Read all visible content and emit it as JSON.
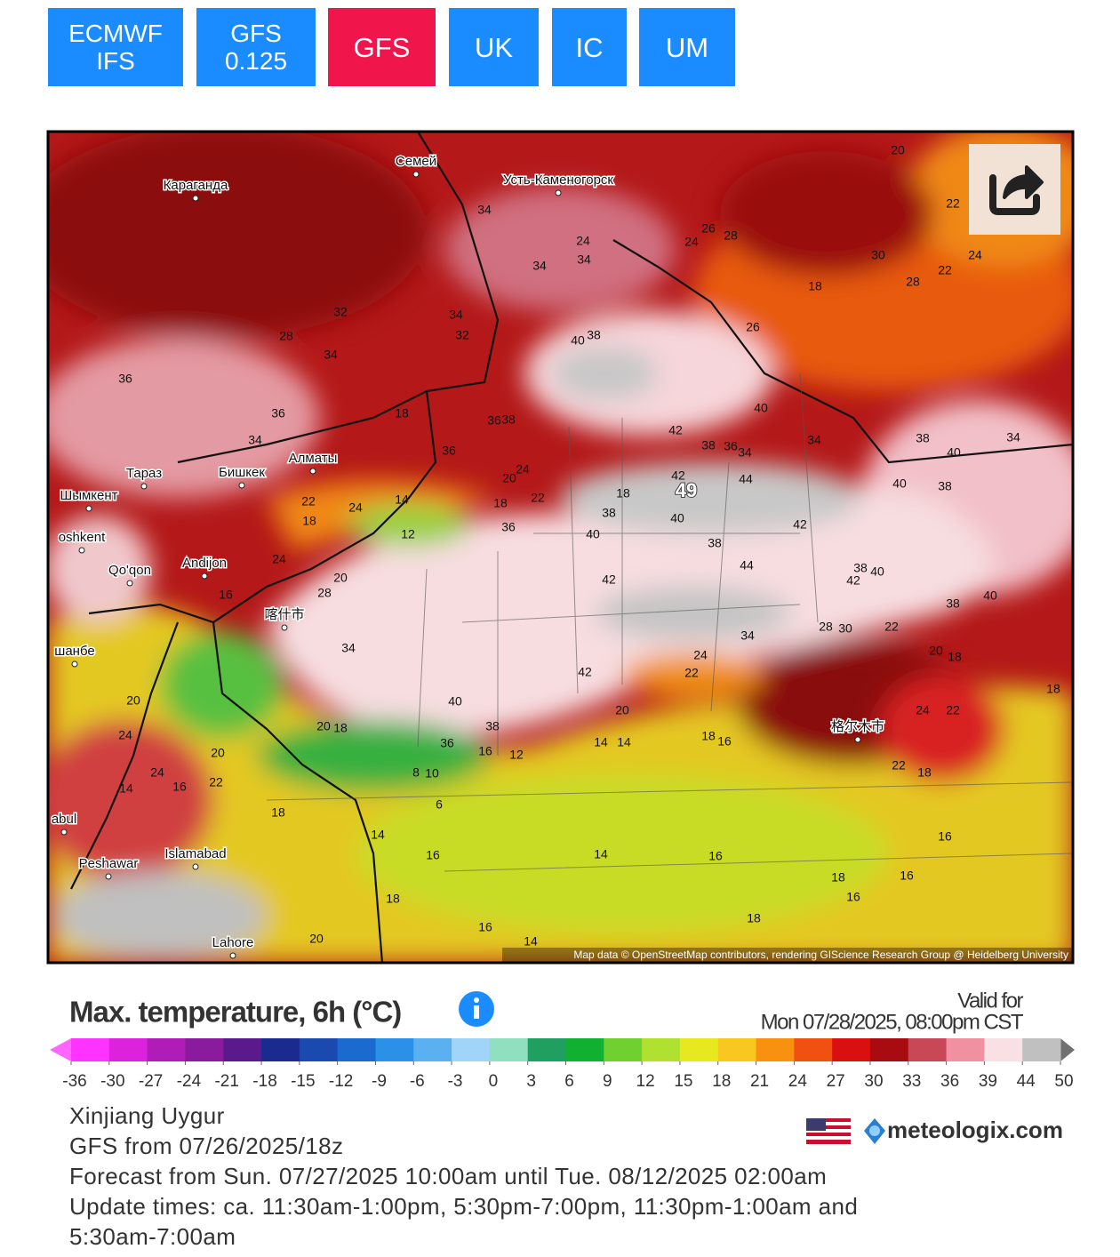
{
  "tabs": [
    "ECMWF IFS",
    "GFS 0.125",
    "GFS",
    "UK",
    "IC",
    "UM"
  ],
  "active_tab": "GFS",
  "map": {
    "cities": [
      "Семей",
      "Караганда",
      "Усть-Каменогорск",
      "Тараз",
      "Бишкек",
      "Алматы",
      "Шымкент",
      "oshkent",
      "Qo'qon",
      "Andijon",
      "喀什市",
      "шанбе",
      "格尔木市",
      "abul",
      "Peshawar",
      "Islamabad",
      "Lahore"
    ],
    "temperatures": [
      34,
      34,
      34,
      24,
      26,
      28,
      24,
      20,
      22,
      24,
      30,
      28,
      22,
      18,
      26,
      28,
      32,
      34,
      38,
      40,
      34,
      32,
      36,
      36,
      34,
      18,
      36,
      38,
      36,
      24,
      20,
      22,
      18,
      42,
      38,
      36,
      34,
      44,
      42,
      40,
      38,
      40,
      36,
      18,
      12,
      14,
      22,
      24,
      18,
      20,
      28,
      24,
      16,
      49,
      40,
      34,
      42,
      44,
      38,
      42,
      38,
      40,
      42,
      40,
      38,
      40,
      38,
      34,
      40,
      38,
      42,
      40,
      38,
      36,
      34,
      20,
      18,
      16,
      12,
      14,
      14,
      18,
      16,
      20,
      24,
      22,
      34,
      28,
      30,
      22,
      20,
      18,
      18,
      24,
      22,
      22,
      18,
      16,
      18,
      16,
      16,
      16,
      18,
      14,
      16,
      16,
      14,
      14,
      18,
      20,
      22,
      16,
      24,
      14,
      20,
      24,
      10,
      6,
      8,
      18,
      20
    ],
    "attribution": "Map data © OpenStreetMap contributors, rendering GIScience Research Group @ Heidelberg University"
  },
  "legend": {
    "title": "Max. temperature, 6h (°C)",
    "valid_label": "Valid for",
    "valid_time": "Mon 07/28/2025, 08:00pm CST",
    "ticks": [
      -36,
      -30,
      -27,
      -24,
      -21,
      -18,
      -15,
      -12,
      -9,
      -6,
      -3,
      0,
      3,
      6,
      9,
      12,
      15,
      18,
      21,
      24,
      27,
      30,
      33,
      36,
      39,
      44,
      50
    ],
    "colors": [
      "#ff66ff",
      "#ff33ff",
      "#dd22dd",
      "#b01cb8",
      "#8a1a9e",
      "#5a1a8e",
      "#1a2a8e",
      "#1a4ab0",
      "#1a6ad0",
      "#2a90e8",
      "#5ab0f0",
      "#a0d4f8",
      "#90e0c0",
      "#20a060",
      "#10b030",
      "#70d030",
      "#b0e030",
      "#e8e820",
      "#f8c820",
      "#f89010",
      "#f05010",
      "#d81010",
      "#a80c10",
      "#c84858",
      "#f090a0",
      "#f8e0e4",
      "#c0c0c0",
      "#707070"
    ]
  },
  "info": {
    "region": "Xinjiang Uygur",
    "model_run": "GFS from 07/26/2025/18z",
    "forecast_range": "Forecast from Sun. 07/27/2025 10:00am until Tue. 08/12/2025 02:00am",
    "update_times": "Update times: ca. 11:30am-1:00pm, 5:30pm-7:00pm, 11:30pm-1:00am and 5:30am-7:00am"
  },
  "brand": "meteologix.com"
}
